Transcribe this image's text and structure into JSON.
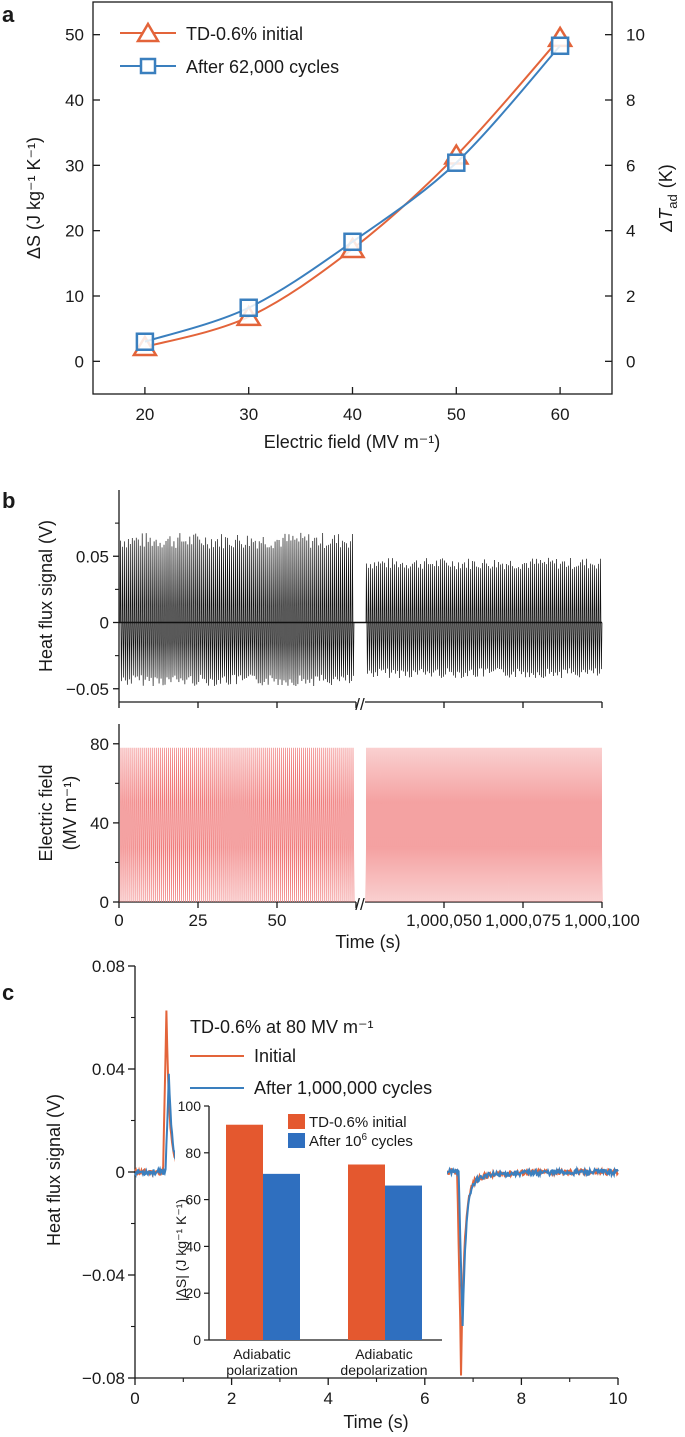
{
  "colors": {
    "orange": "#e3643a",
    "blue": "#3a7fbe",
    "black": "#111111",
    "pink": "#f07a7a",
    "bar_orange": "#e4582f",
    "bar_blue": "#2f6fbf"
  },
  "chart_data": [
    {
      "type": "line",
      "panel": "a",
      "xlabel": "Electric field (MV m⁻¹)",
      "ylabel": "ΔS (J kg⁻¹ K⁻¹)",
      "y2label_base": "ΔT",
      "y2label_sub": "ad",
      "y2label_unit": "(K)",
      "x": [
        20,
        30,
        40,
        50,
        60
      ],
      "xlim": [
        15,
        65
      ],
      "ylim": [
        -5,
        55
      ],
      "y2lim": [
        -1,
        11
      ],
      "x_ticks": [
        "20",
        "30",
        "40",
        "50",
        "60"
      ],
      "y_ticks": [
        "0",
        "10",
        "20",
        "30",
        "40",
        "50"
      ],
      "y2_ticks": [
        "0",
        "2",
        "4",
        "6",
        "8",
        "10"
      ],
      "series": [
        {
          "name": "TD-0.6% initial",
          "marker": "triangle",
          "color": "orange",
          "values": [
            2.2,
            6.8,
            17.2,
            31.5,
            49.5
          ]
        },
        {
          "name": "After 62,000 cycles",
          "marker": "square",
          "color": "blue",
          "values": [
            3.0,
            8.2,
            18.3,
            30.4,
            48.3
          ]
        }
      ]
    },
    {
      "type": "line",
      "panel": "b-top",
      "ylabel": "Heat flux signal (V)",
      "ylim": [
        -0.06,
        0.1
      ],
      "y_ticks": [
        "−0.05",
        "0",
        "0.05"
      ],
      "segments": [
        {
          "t_start": 0,
          "t_end": 70,
          "amp_pos": 0.068,
          "amp_neg": -0.048,
          "cycles": 118
        },
        {
          "t_start": 1000030,
          "t_end": 1000100,
          "amp_pos": 0.049,
          "amp_neg": -0.042,
          "cycles": 118
        }
      ],
      "zero_line": 0
    },
    {
      "type": "line",
      "panel": "b-bottom",
      "ylabel_line1": "Electric field",
      "ylabel_line2": "(MV m⁻¹)",
      "xlabel": "Time (s)",
      "ylim": [
        0,
        90
      ],
      "y_ticks": [
        "0",
        "40",
        "80"
      ],
      "x_ticks_left": [
        "0",
        "25",
        "50"
      ],
      "x_ticks_right": [
        "1,000,050",
        "1,000,075",
        "1,000,100"
      ],
      "field_max": 78,
      "field_min": 0
    },
    {
      "type": "line",
      "panel": "c",
      "xlabel": "Time (s)",
      "ylabel": "Heat flux signal (V)",
      "xlim": [
        0,
        10
      ],
      "ylim": [
        -0.08,
        0.08
      ],
      "x_ticks": [
        "0",
        "2",
        "4",
        "6",
        "8",
        "10"
      ],
      "y_ticks": [
        "−0.08",
        "−0.04",
        "0",
        "0.04",
        "0.08"
      ],
      "legend_title": "TD-0.6% at 80 MV m⁻¹",
      "series": [
        {
          "name": "Initial",
          "color": "orange",
          "peak_time": 0.65,
          "peak": 0.06,
          "valley_time": 6.75,
          "valley": -0.074
        },
        {
          "name": "After 1,000,000 cycles",
          "color": "blue",
          "peak_time": 0.7,
          "peak": 0.036,
          "valley_time": 6.78,
          "valley": -0.058
        }
      ]
    },
    {
      "type": "bar",
      "panel": "c-inset",
      "ylabel": "|ΔS| (J kg⁻¹ K⁻¹)",
      "ylim": [
        0,
        100
      ],
      "y_ticks": [
        "0",
        "20",
        "40",
        "60",
        "80",
        "100"
      ],
      "categories": [
        {
          "line1": "Adiabatic",
          "line2": "polarization"
        },
        {
          "line1": "Adiabatic",
          "line2": "depolarization"
        }
      ],
      "series": [
        {
          "name": "TD-0.6% initial",
          "color": "bar_orange",
          "values": [
            92,
            75
          ]
        },
        {
          "name_base": "After 10",
          "name_sup": "6",
          "name_tail": " cycles",
          "color": "bar_blue",
          "values": [
            71,
            66
          ]
        }
      ]
    }
  ],
  "labels": {
    "a": "a",
    "b": "b",
    "c": "c"
  },
  "break_mark": "//"
}
